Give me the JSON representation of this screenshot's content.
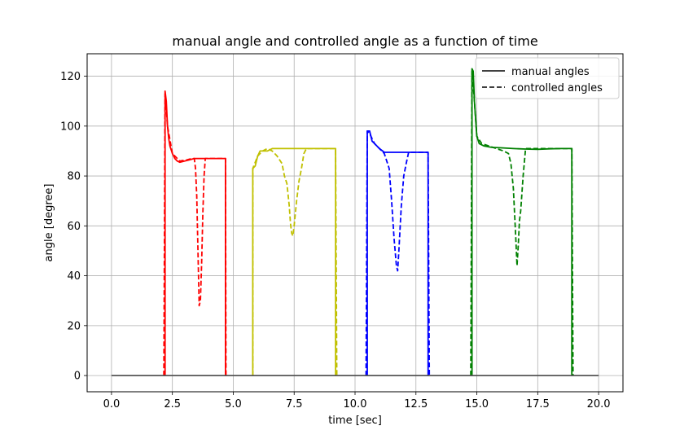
{
  "chart_data": {
    "type": "line",
    "title": "manual angle and controlled angle as a function of time",
    "xlabel": "time [sec]",
    "ylabel": "angle [degree]",
    "xlim": [
      -1.0,
      21.0
    ],
    "ylim": [
      -6.5,
      129.0
    ],
    "xticks": [
      0.0,
      2.5,
      5.0,
      7.5,
      10.0,
      12.5,
      15.0,
      17.5,
      20.0
    ],
    "xtick_labels": [
      "0.0",
      "2.5",
      "5.0",
      "7.5",
      "10.0",
      "12.5",
      "15.0",
      "17.5",
      "20.0"
    ],
    "yticks": [
      0,
      20,
      40,
      60,
      80,
      100,
      120
    ],
    "ytick_labels": [
      "0",
      "20",
      "40",
      "60",
      "80",
      "100",
      "120"
    ],
    "grid": true,
    "legend": {
      "placement": "top-right",
      "entries": [
        {
          "label": "manual angles",
          "style": "solid"
        },
        {
          "label": "controlled angles",
          "style": "dashed"
        }
      ]
    },
    "series": [
      {
        "color": "#ff0000",
        "style": "solid",
        "x": [
          2.2,
          2.2,
          2.25,
          2.3,
          2.35,
          2.4,
          2.5,
          2.6,
          2.7,
          2.8,
          3.0,
          3.2,
          3.4,
          3.7,
          4.0,
          4.3,
          4.6,
          4.68,
          4.68
        ],
        "y": [
          0,
          114,
          110,
          100,
          95,
          92,
          89,
          87,
          86,
          85.5,
          86,
          86.5,
          87,
          87,
          87,
          87,
          87,
          87,
          0
        ]
      },
      {
        "color": "#ff0000",
        "style": "dashed",
        "x": [
          2.15,
          2.2,
          2.3,
          2.5,
          2.8,
          3.1,
          3.3,
          3.4,
          3.45,
          3.5,
          3.55,
          3.6,
          3.65,
          3.7,
          3.75,
          3.8,
          3.85,
          3.9,
          4.0,
          4.3,
          4.6,
          4.68,
          4.7
        ],
        "y": [
          0,
          113,
          100,
          89,
          86,
          86.5,
          87,
          87,
          83,
          72,
          50,
          28,
          30,
          45,
          65,
          80,
          87,
          87,
          87,
          87,
          87,
          87,
          0
        ]
      },
      {
        "color": "#c0c000",
        "style": "solid",
        "x": [
          5.8,
          5.8,
          5.9,
          6.0,
          6.1,
          6.2,
          6.4,
          6.6,
          7.0,
          8.0,
          9.2,
          9.2
        ],
        "y": [
          0,
          83,
          84,
          88,
          90,
          90,
          90,
          91,
          91,
          91,
          91,
          0
        ]
      },
      {
        "color": "#c0c000",
        "style": "dashed",
        "x": [
          5.8,
          5.8,
          6.0,
          6.2,
          6.4,
          6.6,
          6.8,
          7.0,
          7.1,
          7.2,
          7.3,
          7.35,
          7.4,
          7.45,
          7.5,
          7.6,
          7.7,
          7.8,
          7.9,
          8.0,
          8.5,
          9.2,
          9.25
        ],
        "y": [
          0,
          83,
          88,
          90,
          91,
          90,
          88,
          85,
          80,
          77,
          68,
          61,
          57,
          56,
          60,
          70,
          78,
          83,
          89,
          91,
          91,
          91,
          0
        ]
      },
      {
        "color": "#0000ff",
        "style": "solid",
        "x": [
          10.5,
          10.5,
          10.6,
          10.7,
          10.8,
          11.0,
          11.2,
          11.5,
          12.0,
          12.5,
          13.0,
          13.0
        ],
        "y": [
          0,
          98,
          98,
          94,
          93,
          91,
          89.5,
          89.5,
          89.5,
          89.5,
          89.5,
          0
        ]
      },
      {
        "color": "#0000ff",
        "style": "dashed",
        "x": [
          10.45,
          10.5,
          10.6,
          10.8,
          11.0,
          11.2,
          11.4,
          11.5,
          11.6,
          11.7,
          11.75,
          11.8,
          11.9,
          12.0,
          12.1,
          12.2,
          12.5,
          13.0,
          13.05
        ],
        "y": [
          0,
          98,
          97,
          93,
          91,
          89,
          83,
          70,
          55,
          44,
          42,
          50,
          68,
          80,
          85,
          89.5,
          89.5,
          89.5,
          0
        ]
      },
      {
        "color": "#008000",
        "style": "solid",
        "x": [
          14.8,
          14.8,
          14.85,
          14.9,
          15.0,
          15.1,
          15.3,
          15.6,
          16.0,
          16.5,
          17.0,
          17.5,
          18.0,
          18.5,
          18.9,
          18.9
        ],
        "y": [
          0,
          123,
          122,
          110,
          96,
          93,
          92,
          91.5,
          91.3,
          91,
          90.8,
          90.7,
          90.9,
          91,
          91,
          0
        ]
      },
      {
        "color": "#008000",
        "style": "dashed",
        "x": [
          14.75,
          14.8,
          14.9,
          15.0,
          15.2,
          15.5,
          15.8,
          16.1,
          16.3,
          16.4,
          16.5,
          16.55,
          16.6,
          16.65,
          16.7,
          16.75,
          16.8,
          16.9,
          17.0,
          17.5,
          18.0,
          18.9,
          18.95
        ],
        "y": [
          0,
          122,
          110,
          96,
          93,
          92,
          91,
          90,
          89,
          85,
          75,
          65,
          55,
          44,
          52,
          62,
          66,
          80,
          91,
          91,
          91,
          91,
          0
        ]
      },
      {
        "color": "#555555",
        "style": "solid",
        "x": [
          0.0,
          20.0
        ],
        "y": [
          0,
          0
        ]
      }
    ]
  }
}
